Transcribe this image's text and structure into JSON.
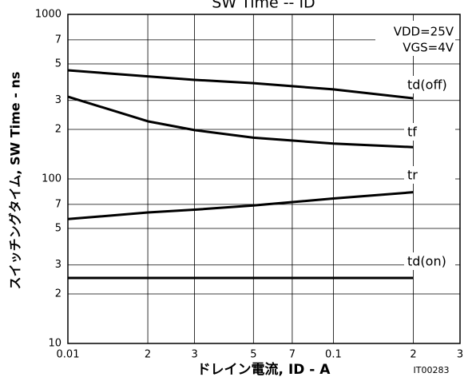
{
  "chart_data": {
    "type": "line",
    "title": "SW Time -- ID",
    "x_label": "ドレイン電流, ID - A",
    "y_label": "スイッチングタイム, SW Time - ns",
    "annotations": [
      "VDD=25V",
      "VGS=4V"
    ],
    "figure_id": "IT00283",
    "log_x": true,
    "log_y": true,
    "grid": true,
    "x": [
      0.01,
      0.02,
      0.03,
      0.05,
      0.1,
      0.2
    ],
    "series": [
      {
        "name": "td(off)",
        "color": "#000000",
        "values": [
          457,
          420,
          400,
          382,
          350,
          309
        ]
      },
      {
        "name": "tf",
        "color": "#000000",
        "values": [
          316,
          224,
          198,
          178,
          164,
          156
        ]
      },
      {
        "name": "tr",
        "color": "#000000",
        "values": [
          57,
          62.5,
          65,
          69,
          76,
          83
        ]
      },
      {
        "name": "td(on)",
        "color": "#000000",
        "values": [
          25,
          25,
          25,
          25,
          25,
          25
        ]
      }
    ],
    "xlim": [
      0.01,
      0.3
    ],
    "ylim": [
      10,
      1000
    ],
    "xticks": [
      0.01,
      {
        "value": 0.02,
        "label": "2"
      },
      {
        "value": 0.03,
        "label": "3"
      },
      {
        "value": 0.05,
        "label": "5"
      },
      {
        "value": 0.07,
        "label": "7"
      },
      0.1,
      {
        "value": 0.2,
        "label": "2"
      },
      {
        "value": 0.3,
        "label": "3"
      }
    ],
    "yticks": [
      10,
      {
        "value": 20,
        "label": "2"
      },
      {
        "value": 30,
        "label": "3"
      },
      {
        "value": 50,
        "label": "5"
      },
      {
        "value": 70,
        "label": "7"
      },
      100,
      {
        "value": 200,
        "label": "2"
      },
      {
        "value": 300,
        "label": "3"
      },
      {
        "value": 500,
        "label": "5"
      },
      {
        "value": 700,
        "label": "7"
      },
      1000
    ]
  }
}
